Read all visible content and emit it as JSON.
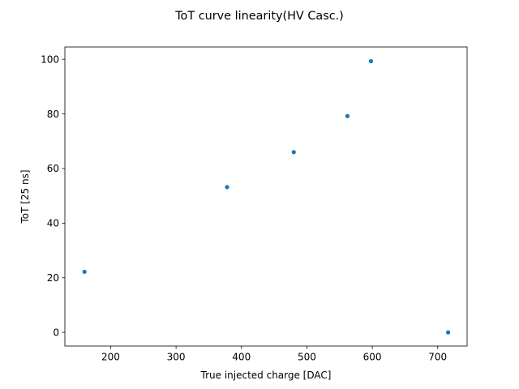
{
  "chart_data": {
    "type": "scatter",
    "title": "ToT curve linearity(HV Casc.)",
    "xlabel": "True injected charge [DAC]",
    "ylabel": "ToT [25 ns]",
    "xlim": [
      130,
      745
    ],
    "ylim": [
      -5,
      104.5
    ],
    "xticks": [
      200,
      300,
      400,
      500,
      600,
      700
    ],
    "yticks": [
      0,
      20,
      40,
      60,
      80,
      100
    ],
    "grid": false,
    "color": "#1f77b4",
    "series": [
      {
        "x": [
          160,
          378,
          480,
          562,
          598,
          716
        ],
        "y": [
          22.2,
          53.2,
          66.0,
          79.2,
          99.3,
          0.0
        ]
      }
    ]
  }
}
